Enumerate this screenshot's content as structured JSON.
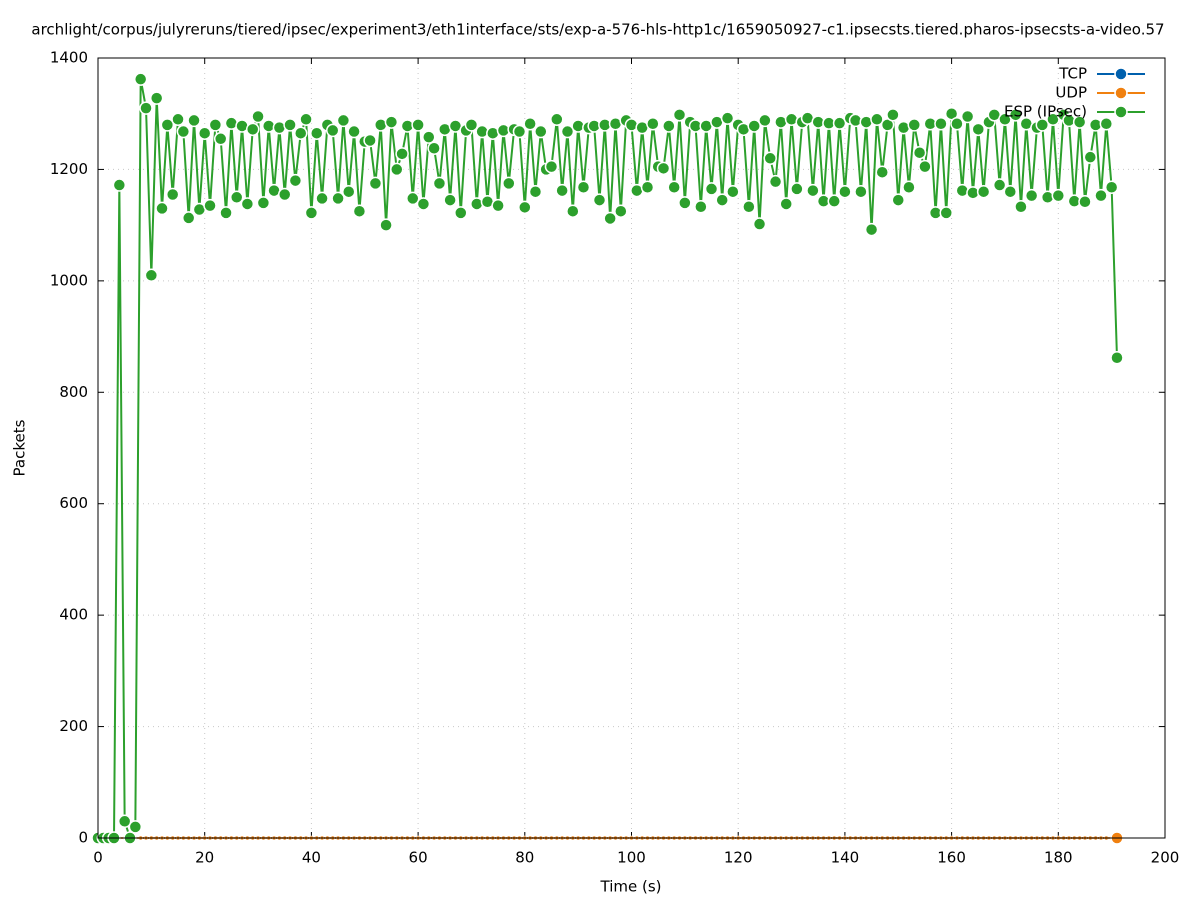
{
  "chart_data": {
    "type": "line",
    "title": "archlight/corpus/julyreruns/tiered/ipsec/experiment3/eth1interface/sts/exp-a-576-hls-http1c/1659050927-c1.ipsecsts.tiered.pharos-ipsecsts-a-video.57",
    "x_label": "Time (s)",
    "y_label": "Packets",
    "x": [
      0,
      1,
      2,
      3,
      4,
      5,
      6,
      7,
      8,
      9,
      10,
      11,
      12,
      13,
      14,
      15,
      16,
      17,
      18,
      19,
      20,
      21,
      22,
      23,
      24,
      25,
      26,
      27,
      28,
      29,
      30,
      31,
      32,
      33,
      34,
      35,
      36,
      37,
      38,
      39,
      40,
      41,
      42,
      43,
      44,
      45,
      46,
      47,
      48,
      49,
      50,
      51,
      52,
      53,
      54,
      55,
      56,
      57,
      58,
      59,
      60,
      61,
      62,
      63,
      64,
      65,
      66,
      67,
      68,
      69,
      70,
      71,
      72,
      73,
      74,
      75,
      76,
      77,
      78,
      79,
      80,
      81,
      82,
      83,
      84,
      85,
      86,
      87,
      88,
      89,
      90,
      91,
      92,
      93,
      94,
      95,
      96,
      97,
      98,
      99,
      100,
      101,
      102,
      103,
      104,
      105,
      106,
      107,
      108,
      109,
      110,
      111,
      112,
      113,
      114,
      115,
      116,
      117,
      118,
      119,
      120,
      121,
      122,
      123,
      124,
      125,
      126,
      127,
      128,
      129,
      130,
      131,
      132,
      133,
      134,
      135,
      136,
      137,
      138,
      139,
      140,
      141,
      142,
      143,
      144,
      145,
      146,
      147,
      148,
      149,
      150,
      151,
      152,
      153,
      154,
      155,
      156,
      157,
      158,
      159,
      160,
      161,
      162,
      163,
      164,
      165,
      166,
      167,
      168,
      169,
      170,
      171,
      172,
      173,
      174,
      175,
      176,
      177,
      178,
      179,
      180,
      181,
      182,
      183,
      184,
      185,
      186,
      187,
      188,
      189,
      190,
      191
    ],
    "series": [
      {
        "name": "TCP",
        "color": "#0060ad",
        "values": [
          0,
          0,
          0,
          0,
          0,
          0,
          0,
          0,
          0,
          0,
          0,
          0,
          0,
          0,
          0,
          0,
          0,
          0,
          0,
          0,
          0,
          0,
          0,
          0,
          0,
          0,
          0,
          0,
          0,
          0,
          0,
          0,
          0,
          0,
          0,
          0,
          0,
          0,
          0,
          0,
          0,
          0,
          0,
          0,
          0,
          0,
          0,
          0,
          0,
          0,
          0,
          0,
          0,
          0,
          0,
          0,
          0,
          0,
          0,
          0,
          0,
          0,
          0,
          0,
          0,
          0,
          0,
          0,
          0,
          0,
          0,
          0,
          0,
          0,
          0,
          0,
          0,
          0,
          0,
          0,
          0,
          0,
          0,
          0,
          0,
          0,
          0,
          0,
          0,
          0,
          0,
          0,
          0,
          0,
          0,
          0,
          0,
          0,
          0,
          0,
          0,
          0,
          0,
          0,
          0,
          0,
          0,
          0,
          0,
          0,
          0,
          0,
          0,
          0,
          0,
          0,
          0,
          0,
          0,
          0,
          0,
          0,
          0,
          0,
          0,
          0,
          0,
          0,
          0,
          0,
          0,
          0,
          0,
          0,
          0,
          0,
          0,
          0,
          0,
          0,
          0,
          0,
          0,
          0,
          0,
          0,
          0,
          0,
          0,
          0,
          0,
          0,
          0,
          0,
          0,
          0,
          0,
          0,
          0,
          0,
          0,
          0,
          0,
          0,
          0,
          0,
          0,
          0,
          0,
          0,
          0,
          0,
          0,
          0,
          0,
          0,
          0,
          0,
          0,
          0,
          0,
          0,
          0,
          0,
          0,
          0,
          0,
          0,
          0,
          0,
          0,
          0
        ]
      },
      {
        "name": "UDP",
        "color": "#f0800f",
        "values": [
          0,
          0,
          0,
          0,
          0,
          0,
          0,
          0,
          0,
          0,
          0,
          0,
          0,
          0,
          0,
          0,
          0,
          0,
          0,
          0,
          0,
          0,
          0,
          0,
          0,
          0,
          0,
          0,
          0,
          0,
          0,
          0,
          0,
          0,
          0,
          0,
          0,
          0,
          0,
          0,
          0,
          0,
          0,
          0,
          0,
          0,
          0,
          0,
          0,
          0,
          0,
          0,
          0,
          0,
          0,
          0,
          0,
          0,
          0,
          0,
          0,
          0,
          0,
          0,
          0,
          0,
          0,
          0,
          0,
          0,
          0,
          0,
          0,
          0,
          0,
          0,
          0,
          0,
          0,
          0,
          0,
          0,
          0,
          0,
          0,
          0,
          0,
          0,
          0,
          0,
          0,
          0,
          0,
          0,
          0,
          0,
          0,
          0,
          0,
          0,
          0,
          0,
          0,
          0,
          0,
          0,
          0,
          0,
          0,
          0,
          0,
          0,
          0,
          0,
          0,
          0,
          0,
          0,
          0,
          0,
          0,
          0,
          0,
          0,
          0,
          0,
          0,
          0,
          0,
          0,
          0,
          0,
          0,
          0,
          0,
          0,
          0,
          0,
          0,
          0,
          0,
          0,
          0,
          0,
          0,
          0,
          0,
          0,
          0,
          0,
          0,
          0,
          0,
          0,
          0,
          0,
          0,
          0,
          0,
          0,
          0,
          0,
          0,
          0,
          0,
          0,
          0,
          0,
          0,
          0,
          0,
          0,
          0,
          0,
          0,
          0,
          0,
          0,
          0,
          0,
          0,
          0,
          0,
          0,
          0,
          0,
          0,
          0,
          0,
          0,
          0,
          0
        ]
      },
      {
        "name": "ESP (IPsec)",
        "color": "#2ca02c",
        "values": [
          0,
          0,
          0,
          0,
          1172,
          30,
          0,
          20,
          1362,
          1310,
          1010,
          1328,
          1130,
          1280,
          1155,
          1290,
          1268,
          1113,
          1288,
          1128,
          1265,
          1135,
          1280,
          1255,
          1122,
          1283,
          1150,
          1278,
          1138,
          1272,
          1295,
          1140,
          1278,
          1162,
          1275,
          1155,
          1280,
          1180,
          1265,
          1290,
          1122,
          1265,
          1148,
          1280,
          1270,
          1148,
          1288,
          1160,
          1268,
          1125,
          1250,
          1252,
          1175,
          1280,
          1100,
          1285,
          1200,
          1228,
          1278,
          1148,
          1280,
          1138,
          1258,
          1238,
          1175,
          1272,
          1145,
          1278,
          1122,
          1270,
          1280,
          1138,
          1268,
          1142,
          1265,
          1135,
          1270,
          1175,
          1272,
          1268,
          1132,
          1282,
          1160,
          1268,
          1200,
          1205,
          1290,
          1162,
          1268,
          1125,
          1278,
          1168,
          1275,
          1278,
          1145,
          1280,
          1112,
          1282,
          1125,
          1288,
          1280,
          1162,
          1275,
          1168,
          1282,
          1205,
          1202,
          1278,
          1168,
          1298,
          1140,
          1285,
          1278,
          1133,
          1278,
          1165,
          1285,
          1145,
          1292,
          1160,
          1280,
          1272,
          1133,
          1278,
          1102,
          1288,
          1220,
          1178,
          1285,
          1138,
          1290,
          1165,
          1285,
          1292,
          1162,
          1285,
          1143,
          1283,
          1143,
          1283,
          1160,
          1292,
          1288,
          1160,
          1285,
          1092,
          1290,
          1195,
          1280,
          1298,
          1145,
          1275,
          1168,
          1280,
          1230,
          1205,
          1282,
          1122,
          1282,
          1122,
          1300,
          1282,
          1162,
          1295,
          1158,
          1272,
          1160,
          1285,
          1298,
          1172,
          1290,
          1160,
          1298,
          1133,
          1282,
          1153,
          1275,
          1280,
          1150,
          1290,
          1153,
          1298,
          1288,
          1143,
          1285,
          1142,
          1222,
          1280,
          1153,
          1282,
          1168,
          862
        ]
      }
    ],
    "xlim": [
      0,
      200
    ],
    "xticks": [
      0,
      20,
      40,
      60,
      80,
      100,
      120,
      140,
      160,
      180,
      200
    ],
    "ylim": [
      0,
      1400
    ],
    "yticks": [
      0,
      200,
      400,
      600,
      800,
      1000,
      1200,
      1400
    ],
    "grid": true,
    "legend": "top-right"
  }
}
